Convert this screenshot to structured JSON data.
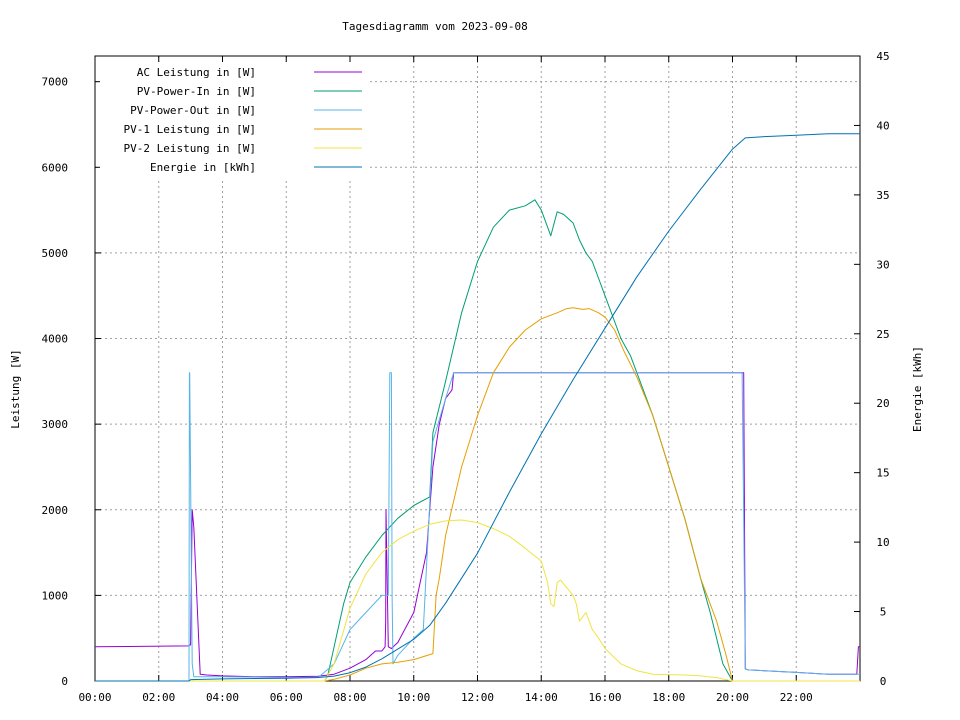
{
  "chart_data": {
    "type": "line",
    "title": "Tagesdiagramm vom 2023-09-08",
    "ylabel": "Leistung [W]",
    "y2label": "Energie [kWh]",
    "xlim": [
      0,
      24
    ],
    "ylim": [
      0,
      7300
    ],
    "y2lim": [
      0,
      45
    ],
    "grid": true,
    "legend_position": "top-left",
    "x_ticks": [
      "00:00",
      "02:00",
      "04:00",
      "06:00",
      "08:00",
      "10:00",
      "12:00",
      "14:00",
      "16:00",
      "18:00",
      "20:00",
      "22:00"
    ],
    "y_ticks": [
      "0",
      "1000",
      "2000",
      "3000",
      "4000",
      "5000",
      "6000",
      "7000"
    ],
    "y2_ticks": [
      "0",
      "5",
      "10",
      "15",
      "20",
      "25",
      "30",
      "35",
      "40",
      "45"
    ],
    "series": [
      {
        "name": "AC Leistung in [W]",
        "color": "#9400d3",
        "axis": "y1",
        "x": [
          0.0,
          2.95,
          2.96,
          3.0,
          3.05,
          3.1,
          3.3,
          3.5,
          4.0,
          5.0,
          6.0,
          7.0,
          7.5,
          8.0,
          8.5,
          8.8,
          9.0,
          9.1,
          9.12,
          9.13,
          9.2,
          9.3,
          9.5,
          10.0,
          10.4,
          10.6,
          10.8,
          11.0,
          11.2,
          11.25,
          12.0,
          13.0,
          14.0,
          15.0,
          16.0,
          17.0,
          18.0,
          19.0,
          20.0,
          20.3,
          20.35,
          20.4,
          20.5,
          21.0,
          22.0,
          23.0,
          23.9,
          23.95,
          24.0
        ],
        "y": [
          400,
          410,
          420,
          420,
          2000,
          1800,
          80,
          70,
          60,
          50,
          50,
          55,
          80,
          150,
          250,
          350,
          350,
          400,
          700,
          2000,
          400,
          380,
          450,
          800,
          1500,
          2500,
          3000,
          3300,
          3400,
          3600,
          3600,
          3600,
          3600,
          3600,
          3600,
          3600,
          3600,
          3600,
          3600,
          3600,
          3600,
          140,
          130,
          120,
          100,
          80,
          80,
          400,
          400
        ]
      },
      {
        "name": "PV-Power-In in [W]",
        "color": "#009e73",
        "axis": "y1",
        "x": [
          0.0,
          7.2,
          7.3,
          7.5,
          7.8,
          8.0,
          8.5,
          9.0,
          9.5,
          10.0,
          10.5,
          10.6,
          11.0,
          11.5,
          12.0,
          12.5,
          13.0,
          13.5,
          13.8,
          14.0,
          14.2,
          14.3,
          14.5,
          14.7,
          15.0,
          15.2,
          15.4,
          15.6,
          16.0,
          16.5,
          16.8,
          17.0,
          17.5,
          18.0,
          18.5,
          19.0,
          19.3,
          19.5,
          19.7,
          20.0,
          20.2,
          20.5,
          24.0
        ],
        "y": [
          0,
          0,
          60,
          400,
          900,
          1150,
          1450,
          1700,
          1900,
          2050,
          2150,
          2900,
          3500,
          4300,
          4900,
          5300,
          5500,
          5550,
          5620,
          5500,
          5300,
          5200,
          5480,
          5450,
          5350,
          5150,
          5000,
          4900,
          4500,
          4000,
          3800,
          3600,
          3100,
          2500,
          1900,
          1200,
          800,
          500,
          200,
          0,
          0,
          0,
          0
        ]
      },
      {
        "name": "PV-Power-Out in [W]",
        "color": "#56b4e9",
        "axis": "y1",
        "x": [
          0.0,
          2.95,
          2.96,
          2.97,
          3.05,
          3.1,
          4.0,
          6.0,
          7.0,
          7.5,
          8.0,
          8.5,
          9.0,
          9.2,
          9.25,
          9.3,
          9.32,
          9.35,
          9.5,
          10.0,
          10.3,
          10.6,
          11.0,
          11.25,
          12.0,
          13.0,
          14.0,
          15.0,
          16.0,
          17.0,
          18.0,
          19.0,
          20.0,
          20.3,
          20.35,
          20.4,
          20.5,
          21.0,
          22.0,
          23.0,
          24.0
        ],
        "y": [
          0,
          0,
          3600,
          3600,
          200,
          50,
          50,
          40,
          40,
          200,
          600,
          800,
          1000,
          1000,
          3600,
          3600,
          1000,
          200,
          300,
          500,
          600,
          2800,
          3300,
          3600,
          3600,
          3600,
          3600,
          3600,
          3600,
          3600,
          3600,
          3600,
          3600,
          3600,
          1900,
          140,
          130,
          120,
          100,
          80,
          80
        ]
      },
      {
        "name": "PV-1 Leistung in [W]",
        "color": "#e69f00",
        "axis": "y1",
        "x": [
          0.0,
          7.2,
          7.5,
          8.0,
          8.5,
          9.0,
          9.5,
          10.0,
          10.6,
          10.7,
          10.8,
          11.0,
          11.5,
          12.0,
          12.5,
          13.0,
          13.5,
          14.0,
          14.5,
          14.8,
          15.0,
          15.3,
          15.5,
          15.8,
          16.0,
          16.3,
          16.6,
          16.8,
          17.0,
          17.5,
          18.0,
          18.5,
          19.0,
          19.5,
          19.8,
          20.0,
          20.2,
          24.0
        ],
        "y": [
          0,
          0,
          20,
          70,
          150,
          200,
          220,
          250,
          320,
          1000,
          1200,
          1700,
          2500,
          3100,
          3600,
          3900,
          4100,
          4230,
          4300,
          4350,
          4360,
          4340,
          4350,
          4300,
          4250,
          4100,
          3850,
          3700,
          3550,
          3100,
          2500,
          1900,
          1200,
          700,
          300,
          0,
          0,
          0
        ]
      },
      {
        "name": "PV-2 Leistung in [W]",
        "color": "#f0e442",
        "axis": "y1",
        "x": [
          0.0,
          7.2,
          7.5,
          8.0,
          8.5,
          9.0,
          9.5,
          10.0,
          10.5,
          11.0,
          11.5,
          12.0,
          12.5,
          13.0,
          13.5,
          14.0,
          14.2,
          14.3,
          14.4,
          14.5,
          14.6,
          15.0,
          15.1,
          15.2,
          15.4,
          15.6,
          15.8,
          16.0,
          16.5,
          17.0,
          17.5,
          18.0,
          18.5,
          19.0,
          19.5,
          20.0,
          20.2,
          24.0
        ],
        "y": [
          0,
          0,
          200,
          850,
          1250,
          1500,
          1650,
          1750,
          1830,
          1870,
          1880,
          1850,
          1780,
          1690,
          1550,
          1400,
          1150,
          900,
          870,
          1150,
          1180,
          1000,
          900,
          700,
          800,
          600,
          500,
          380,
          200,
          120,
          80,
          75,
          70,
          60,
          40,
          0,
          0,
          0
        ]
      },
      {
        "name": "Energie in [kWh]",
        "color": "#0072b2",
        "axis": "y2",
        "x": [
          0.0,
          2.95,
          3.0,
          4.0,
          6.0,
          7.0,
          7.5,
          8.0,
          8.5,
          9.0,
          9.5,
          10.0,
          10.5,
          11.0,
          12.0,
          13.0,
          14.0,
          15.0,
          16.0,
          17.0,
          18.0,
          19.0,
          20.0,
          20.4,
          21.0,
          22.0,
          23.0,
          24.0
        ],
        "y": [
          0,
          0,
          0.1,
          0.15,
          0.2,
          0.25,
          0.35,
          0.6,
          1.0,
          1.6,
          2.3,
          3.0,
          4.0,
          5.6,
          9.2,
          13.6,
          17.8,
          21.7,
          25.4,
          29.1,
          32.4,
          35.4,
          38.3,
          39.1,
          39.2,
          39.3,
          39.4,
          39.4
        ]
      }
    ]
  }
}
